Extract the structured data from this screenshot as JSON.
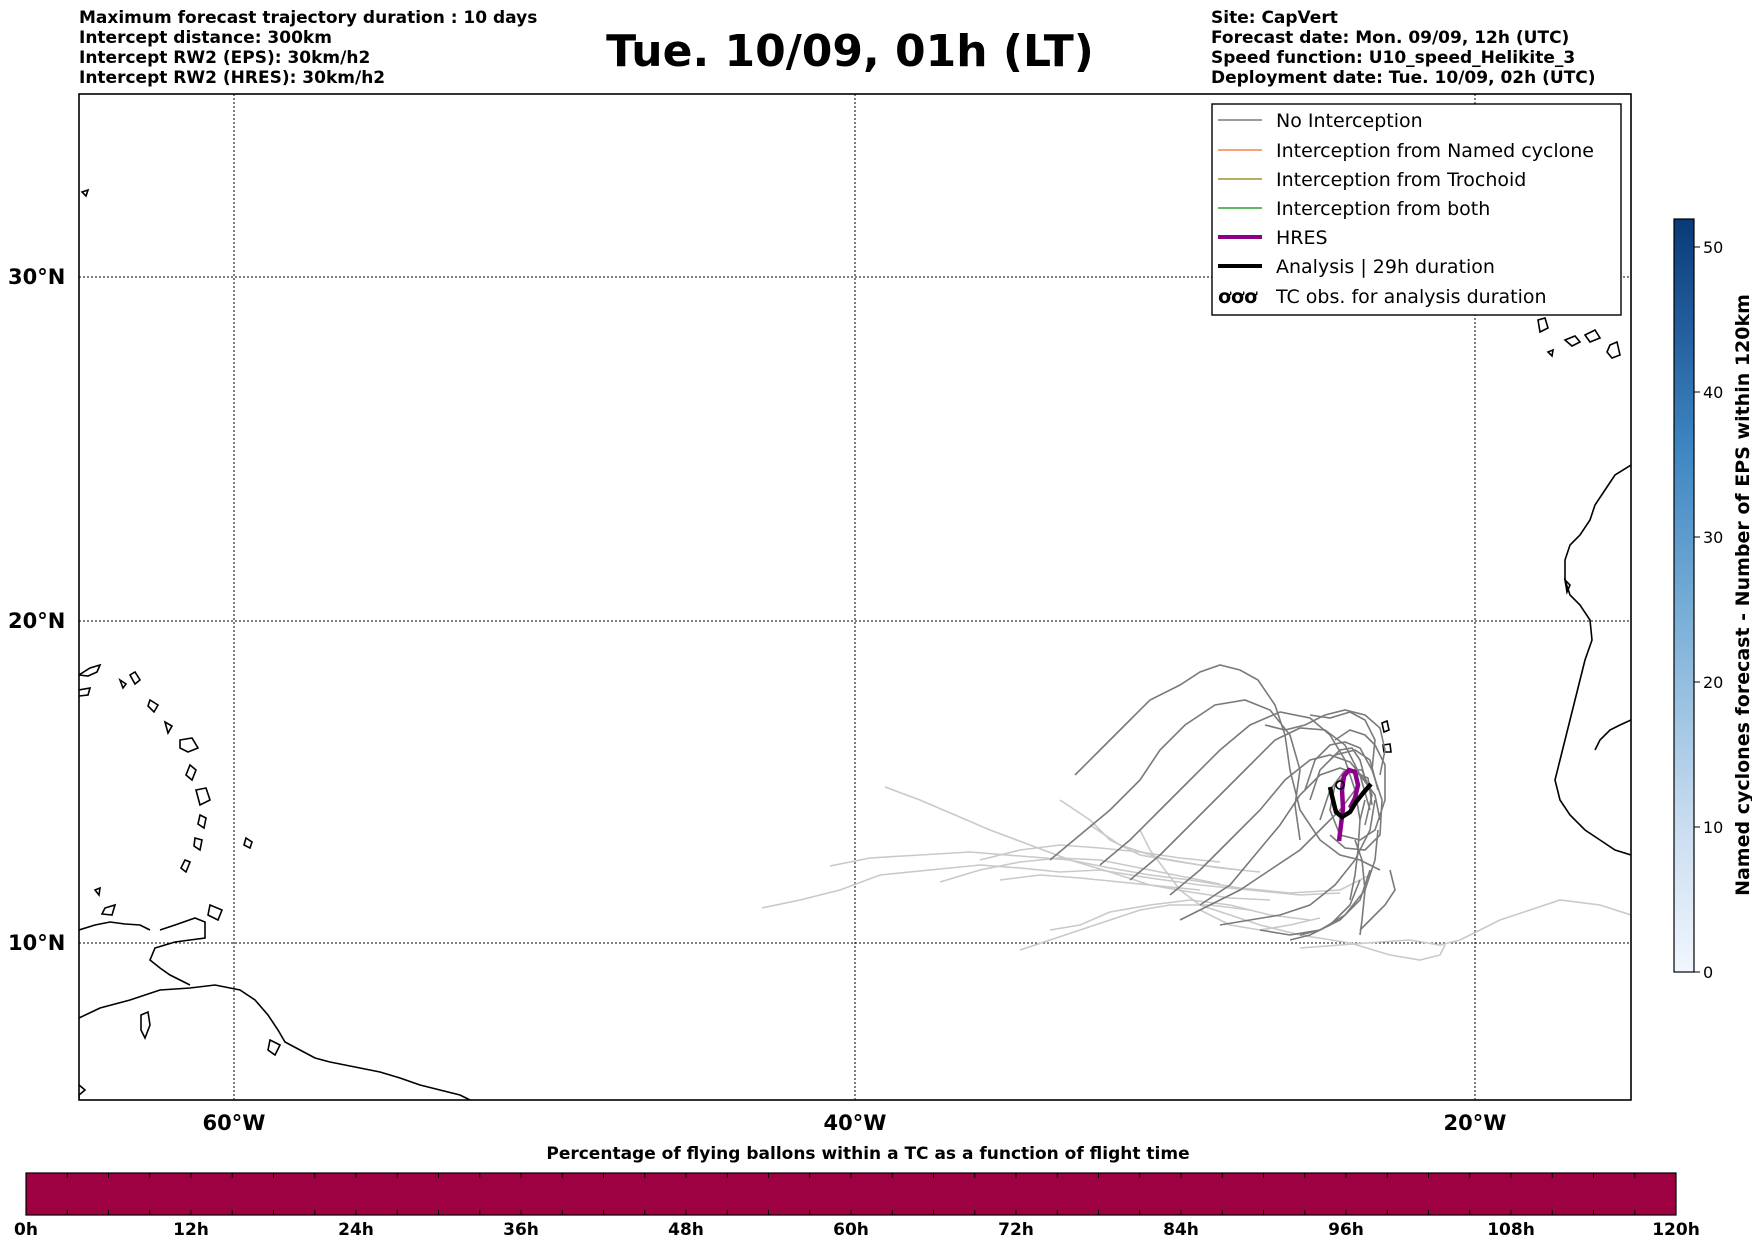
{
  "header": {
    "left_lines": [
      "Maximum forecast trajectory duration : 10 days",
      "Intercept distance: 300km",
      "Intercept RW2 (EPS):  30km/h2",
      "Intercept RW2 (HRES): 30km/h2"
    ],
    "title": "Tue. 10/09, 01h (LT)",
    "right_lines": [
      "Site: CapVert",
      "Forecast date: Mon. 09/09, 12h (UTC)",
      "Speed function: U10_speed_Helikite_3",
      "Deployment date: Tue. 10/09, 02h (UTC)"
    ]
  },
  "map": {
    "lat_labels": [
      "30°N",
      "20°N",
      "10°N"
    ],
    "lon_labels": [
      "60°W",
      "40°W",
      "20°W"
    ],
    "colors": {
      "no_interception": "#7a7a7a",
      "no_interception_light": "#c9c9c9",
      "named_cyclone": "#ff7f50",
      "trochoid": "#a0922f",
      "both": "#2ca02c",
      "hres": "#8b008b",
      "analysis": "#000000"
    }
  },
  "legend": {
    "items": [
      {
        "label": "No Interception",
        "color": "#7a7a7a",
        "style": "thin"
      },
      {
        "label": "Interception from Named cyclone",
        "color": "#ff7f50",
        "style": "thin"
      },
      {
        "label": "Interception from Trochoid",
        "color": "#a0922f",
        "style": "thin"
      },
      {
        "label": "Interception from both",
        "color": "#2ca02c",
        "style": "thin"
      },
      {
        "label": "HRES",
        "color": "#8b008b",
        "style": "thick"
      },
      {
        "label": "Analysis | 29h duration",
        "color": "#000000",
        "style": "thick"
      },
      {
        "label": "TC obs. for analysis duration",
        "color": "#000000",
        "style": "symbol",
        "symbol": "ơơơ"
      }
    ]
  },
  "colorbar": {
    "label": "Named cyclones forecast - Number of EPS within 120km",
    "ticks": [
      "0",
      "10",
      "20",
      "30",
      "40",
      "50"
    ],
    "low_color": "#f0f6fd",
    "high_color": "#0a3a78"
  },
  "bottom_bar": {
    "title": "Percentage of flying ballons within a TC as a function of flight time",
    "ticks": [
      "0h",
      "12h",
      "24h",
      "36h",
      "48h",
      "60h",
      "72h",
      "84h",
      "96h",
      "108h",
      "120h"
    ],
    "fill_color": "#9e0142"
  }
}
